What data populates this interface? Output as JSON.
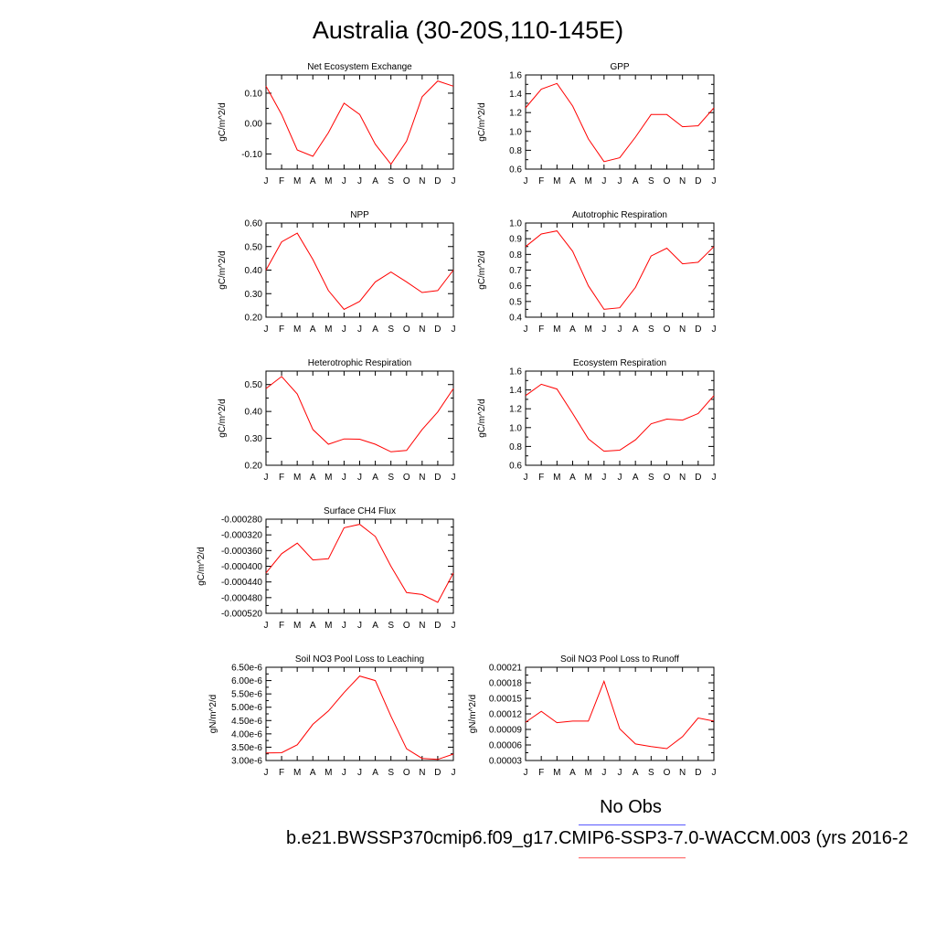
{
  "figure": {
    "title": "Australia (30-20S,110-145E)",
    "legend_label": "No Obs",
    "case_label": "b.e21.BWSSP370cmip6.f09_g17.CMIP6-SSP3-7.0-WACCM.003 (yrs 2016-2",
    "line_color": "#ff0000",
    "obs_color": "#5a5aff"
  },
  "chart_data": [
    {
      "type": "line",
      "title": "Net Ecosystem Exchange",
      "ylabel": "gC/m^2/d",
      "categories": [
        "J",
        "F",
        "M",
        "A",
        "M",
        "J",
        "J",
        "A",
        "S",
        "O",
        "N",
        "D",
        "J"
      ],
      "ylim": [
        -0.15,
        0.16
      ],
      "yticks": [
        -0.1,
        0.0,
        0.1
      ],
      "ytick_labels": [
        "-0.10",
        "0.00",
        "0.10"
      ],
      "values": [
        0.123,
        0.03,
        -0.087,
        -0.108,
        -0.03,
        0.067,
        0.03,
        -0.068,
        -0.134,
        -0.058,
        0.088,
        0.14,
        0.123
      ]
    },
    {
      "type": "line",
      "title": "GPP",
      "ylabel": "gC/m^2/d",
      "categories": [
        "J",
        "F",
        "M",
        "A",
        "M",
        "J",
        "J",
        "A",
        "S",
        "O",
        "N",
        "D",
        "J"
      ],
      "ylim": [
        0.6,
        1.6
      ],
      "yticks": [
        0.6,
        0.8,
        1.0,
        1.2,
        1.4,
        1.6
      ],
      "ytick_labels": [
        "0.6",
        "0.8",
        "1.0",
        "1.2",
        "1.4",
        "1.6"
      ],
      "values": [
        1.25,
        1.45,
        1.51,
        1.27,
        0.92,
        0.68,
        0.72,
        0.94,
        1.18,
        1.18,
        1.05,
        1.06,
        1.25
      ]
    },
    {
      "type": "line",
      "title": "NPP",
      "ylabel": "gC/m^2/d",
      "categories": [
        "J",
        "F",
        "M",
        "A",
        "M",
        "J",
        "J",
        "A",
        "S",
        "O",
        "N",
        "D",
        "J"
      ],
      "ylim": [
        0.2,
        0.6
      ],
      "yticks": [
        0.2,
        0.3,
        0.4,
        0.5,
        0.6
      ],
      "ytick_labels": [
        "0.20",
        "0.30",
        "0.40",
        "0.50",
        "0.60"
      ],
      "values": [
        0.4,
        0.52,
        0.557,
        0.445,
        0.313,
        0.233,
        0.267,
        0.35,
        0.392,
        0.35,
        0.305,
        0.313,
        0.4
      ]
    },
    {
      "type": "line",
      "title": "Autotrophic Respiration",
      "ylabel": "gC/m^2/d",
      "categories": [
        "J",
        "F",
        "M",
        "A",
        "M",
        "J",
        "J",
        "A",
        "S",
        "O",
        "N",
        "D",
        "J"
      ],
      "ylim": [
        0.4,
        1.0
      ],
      "yticks": [
        0.4,
        0.5,
        0.6,
        0.7,
        0.8,
        0.9,
        1.0
      ],
      "ytick_labels": [
        "0.4",
        "0.5",
        "0.6",
        "0.7",
        "0.8",
        "0.9",
        "1.0"
      ],
      "values": [
        0.85,
        0.93,
        0.95,
        0.82,
        0.6,
        0.45,
        0.46,
        0.59,
        0.79,
        0.84,
        0.74,
        0.75,
        0.85
      ]
    },
    {
      "type": "line",
      "title": "Heterotrophic Respiration",
      "ylabel": "gC/m^2/d",
      "categories": [
        "J",
        "F",
        "M",
        "A",
        "M",
        "J",
        "J",
        "A",
        "S",
        "O",
        "N",
        "D",
        "J"
      ],
      "ylim": [
        0.2,
        0.55
      ],
      "yticks": [
        0.2,
        0.3,
        0.4,
        0.5
      ],
      "ytick_labels": [
        "0.20",
        "0.30",
        "0.40",
        "0.50"
      ],
      "values": [
        0.485,
        0.53,
        0.465,
        0.333,
        0.278,
        0.298,
        0.297,
        0.278,
        0.25,
        0.255,
        0.333,
        0.398,
        0.485
      ]
    },
    {
      "type": "line",
      "title": "Ecosystem Respiration",
      "ylabel": "gC/m^2/d",
      "categories": [
        "J",
        "F",
        "M",
        "A",
        "M",
        "J",
        "J",
        "A",
        "S",
        "O",
        "N",
        "D",
        "J"
      ],
      "ylim": [
        0.6,
        1.6
      ],
      "yticks": [
        0.6,
        0.8,
        1.0,
        1.2,
        1.4,
        1.6
      ],
      "ytick_labels": [
        "0.6",
        "0.8",
        "1.0",
        "1.2",
        "1.4",
        "1.6"
      ],
      "values": [
        1.34,
        1.46,
        1.41,
        1.15,
        0.88,
        0.75,
        0.76,
        0.87,
        1.04,
        1.09,
        1.08,
        1.15,
        1.34
      ]
    },
    {
      "type": "line",
      "title": "Surface CH4 Flux",
      "ylabel": "gC/m^2/d",
      "categories": [
        "J",
        "F",
        "M",
        "A",
        "M",
        "J",
        "J",
        "A",
        "S",
        "O",
        "N",
        "D",
        "J"
      ],
      "ylim": [
        -0.00052,
        -0.00028
      ],
      "yticks": [
        -0.00052,
        -0.00048,
        -0.00044,
        -0.0004,
        -0.00036,
        -0.00032,
        -0.00028
      ],
      "ytick_labels": [
        "-0.000520",
        "-0.000480",
        "-0.000440",
        "-0.000400",
        "-0.000360",
        "-0.000320",
        "-0.000280"
      ],
      "values": [
        -0.000417,
        -0.000368,
        -0.000341,
        -0.000384,
        -0.000381,
        -0.000302,
        -0.000293,
        -0.000324,
        -0.0004,
        -0.000467,
        -0.000472,
        -0.000492,
        -0.000417
      ]
    },
    {
      "type": "line",
      "title": "Soil NO3 Pool Loss to Leaching",
      "ylabel": "gN/m^2/d",
      "categories": [
        "J",
        "F",
        "M",
        "A",
        "M",
        "J",
        "J",
        "A",
        "S",
        "O",
        "N",
        "D",
        "J"
      ],
      "ylim": [
        3e-06,
        6.5e-06
      ],
      "yticks": [
        3e-06,
        3.5e-06,
        4e-06,
        4.5e-06,
        5e-06,
        5.5e-06,
        6e-06,
        6.5e-06
      ],
      "ytick_labels": [
        "3.00e-6",
        "3.50e-6",
        "4.00e-6",
        "4.50e-6",
        "5.00e-6",
        "5.50e-6",
        "6.00e-6",
        "6.50e-6"
      ],
      "values": [
        3.28e-06,
        3.29e-06,
        3.59e-06,
        4.36e-06,
        4.86e-06,
        5.55e-06,
        6.17e-06,
        6e-06,
        4.66e-06,
        3.44e-06,
        3.08e-06,
        3.04e-06,
        3.24e-06
      ]
    },
    {
      "type": "line",
      "title": "Soil NO3 Pool Loss to Runoff",
      "ylabel": "gN/m^2/d",
      "categories": [
        "J",
        "F",
        "M",
        "A",
        "M",
        "J",
        "J",
        "A",
        "S",
        "O",
        "N",
        "D",
        "J"
      ],
      "ylim": [
        3e-05,
        0.00021
      ],
      "yticks": [
        3e-05,
        6e-05,
        9e-05,
        0.00012,
        0.00015,
        0.00018,
        0.00021
      ],
      "ytick_labels": [
        "0.00003",
        "0.00006",
        "0.00009",
        "0.00012",
        "0.00015",
        "0.00018",
        "0.00021"
      ],
      "values": [
        0.000104,
        0.000125,
        0.000103,
        0.000106,
        0.000106,
        0.000183,
        9.1e-05,
        6.2e-05,
        5.7e-05,
        5.3e-05,
        7.6e-05,
        0.000112,
        0.000106
      ]
    }
  ]
}
